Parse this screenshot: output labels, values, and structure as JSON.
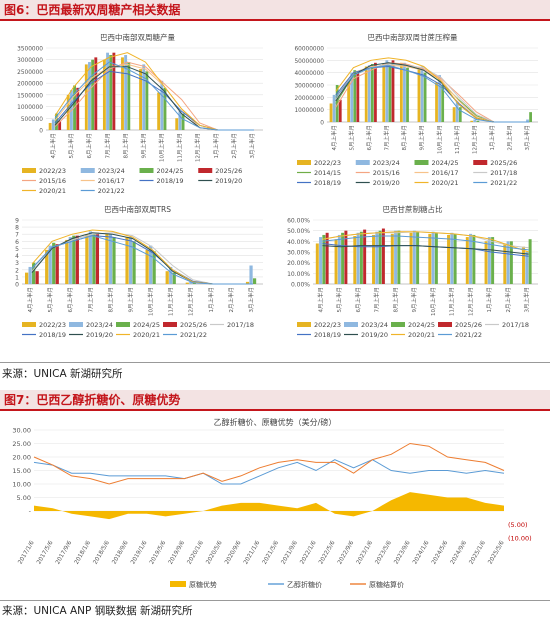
{
  "figure6": {
    "title": "图6：巴西最新双周糖产相关数据",
    "source": "来源：UNICA 新湖研究所"
  },
  "figure7": {
    "title": "图7：巴西乙醇折糖价、原糖优势",
    "source": "来源：UNICA ANP 钢联数据 新湖研究所"
  },
  "chart_data": [
    {
      "type": "bar",
      "title": "巴西中南部双周糖产量",
      "categories": [
        "4月上半月",
        "5月上半月",
        "6月上半月",
        "7月上半月",
        "8月上半月",
        "9月上半月",
        "10月上半月",
        "11月上半月",
        "12月上半月",
        "1月上半月",
        "2月上半月",
        "3月上半月"
      ],
      "ylim": [
        0,
        3500000
      ],
      "yticks": [
        "0",
        "500000",
        "1000000",
        "1500000",
        "2000000",
        "2500000",
        "3000000",
        "3500000"
      ],
      "bar_series": [
        {
          "name": "2022/23",
          "values": [
            300000,
            1500000,
            2800000,
            3000000,
            3100000,
            2600000,
            1600000,
            500000,
            0,
            0,
            0,
            0
          ]
        },
        {
          "name": "2023/24",
          "values": [
            450000,
            1700000,
            2900000,
            3300000,
            3200000,
            2800000,
            2100000,
            800000,
            0,
            0,
            0,
            0
          ]
        },
        {
          "name": "2024/25",
          "values": [
            700000,
            1900000,
            3000000,
            3200000,
            2900000,
            2500000,
            1800000,
            700000,
            0,
            0,
            0,
            0
          ]
        },
        {
          "name": "2025/26",
          "values": [
            400000,
            1800000,
            3100000,
            3300000,
            0,
            0,
            0,
            0,
            0,
            0,
            0,
            0
          ]
        }
      ],
      "line_series": [
        {
          "name": "2015/16",
          "values": [
            150000,
            900000,
            1800000,
            2600000,
            2900000,
            2700000,
            2000000,
            1300000,
            300000,
            0,
            0,
            0
          ]
        },
        {
          "name": "2016/17",
          "values": [
            400000,
            1400000,
            2200000,
            2700000,
            2800000,
            2600000,
            1900000,
            900000,
            100000,
            0,
            0,
            0
          ]
        },
        {
          "name": "2018/19",
          "values": [
            300000,
            1200000,
            2000000,
            2500000,
            2400000,
            2100000,
            1600000,
            800000,
            200000,
            0,
            0,
            0
          ]
        },
        {
          "name": "2019/20",
          "values": [
            200000,
            1100000,
            2100000,
            2700000,
            2700000,
            2400000,
            1700000,
            700000,
            100000,
            0,
            0,
            0
          ]
        },
        {
          "name": "2020/21",
          "values": [
            600000,
            1800000,
            2700000,
            3100000,
            3300000,
            2900000,
            1900000,
            900000,
            200000,
            0,
            0,
            0
          ]
        },
        {
          "name": "2021/22",
          "values": [
            500000,
            1500000,
            2300000,
            2900000,
            2600000,
            2200000,
            1400000,
            500000,
            100000,
            0,
            0,
            0
          ]
        }
      ],
      "legend": [
        "2022/23",
        "2023/24",
        "2024/25",
        "2025/26",
        "2015/16",
        "2016/17",
        "2018/19",
        "2019/20",
        "2020/21",
        "2021/22"
      ]
    },
    {
      "type": "bar",
      "title": "巴西中南部双周甘蔗压榨量",
      "categories": [
        "4月上半月",
        "5月上半月",
        "6月上半月",
        "7月上半月",
        "8月上半月",
        "9月上半月",
        "10月上半月",
        "11月上半月",
        "12月上半月",
        "1月上半月",
        "2月上半月",
        "3月上半月"
      ],
      "ylim": [
        0,
        60000000
      ],
      "yticks": [
        "0",
        "10000000",
        "20000000",
        "30000000",
        "40000000",
        "50000000",
        "60000000"
      ],
      "bar_series": [
        {
          "name": "2022/23",
          "values": [
            15000000,
            33000000,
            45000000,
            47000000,
            48000000,
            44000000,
            32000000,
            12000000,
            1000000,
            0,
            0,
            0
          ]
        },
        {
          "name": "2023/24",
          "values": [
            22000000,
            40000000,
            46000000,
            50000000,
            48000000,
            45000000,
            38000000,
            16000000,
            2000000,
            0,
            0,
            2000000
          ]
        },
        {
          "name": "2024/25",
          "values": [
            30000000,
            42000000,
            47000000,
            46000000,
            44000000,
            40000000,
            30000000,
            12000000,
            1000000,
            0,
            0,
            8000000
          ]
        },
        {
          "name": "2025/26",
          "values": [
            18000000,
            40000000,
            48000000,
            50000000,
            0,
            0,
            0,
            0,
            0,
            0,
            0,
            0
          ]
        }
      ],
      "line_series": [
        {
          "name": "2014/15",
          "values": [
            15000000,
            38000000,
            44000000,
            47000000,
            46000000,
            42000000,
            32000000,
            18000000,
            5000000,
            0,
            0,
            0
          ]
        },
        {
          "name": "2015/16",
          "values": [
            12000000,
            35000000,
            42000000,
            48000000,
            47000000,
            43000000,
            35000000,
            22000000,
            8000000,
            0,
            0,
            0
          ]
        },
        {
          "name": "2016/17",
          "values": [
            20000000,
            40000000,
            45000000,
            46000000,
            45000000,
            42000000,
            34000000,
            17000000,
            4000000,
            0,
            0,
            0
          ]
        },
        {
          "name": "2017/18",
          "values": [
            18000000,
            38000000,
            44000000,
            47000000,
            46000000,
            44000000,
            36000000,
            20000000,
            6000000,
            0,
            0,
            0
          ]
        },
        {
          "name": "2018/19",
          "values": [
            22000000,
            40000000,
            44000000,
            45000000,
            42000000,
            38000000,
            30000000,
            15000000,
            3000000,
            0,
            0,
            0
          ]
        },
        {
          "name": "2019/20",
          "values": [
            17000000,
            38000000,
            46000000,
            48000000,
            46000000,
            42000000,
            32000000,
            14000000,
            3000000,
            0,
            0,
            0
          ]
        },
        {
          "name": "2020/21",
          "values": [
            25000000,
            44000000,
            50000000,
            52000000,
            50000000,
            45000000,
            33000000,
            14000000,
            3000000,
            0,
            0,
            0
          ]
        },
        {
          "name": "2021/22",
          "values": [
            20000000,
            38000000,
            44000000,
            46000000,
            42000000,
            37000000,
            28000000,
            10000000,
            2000000,
            0,
            0,
            0
          ]
        }
      ],
      "legend": [
        "2022/23",
        "2023/24",
        "2024/25",
        "2025/26",
        "2014/15",
        "2015/16",
        "2016/17",
        "2017/18",
        "2018/19",
        "2019/20",
        "2020/21",
        "2021/22"
      ]
    },
    {
      "type": "bar",
      "title": "巴西中南部双周TRS",
      "categories": [
        "4月上半月",
        "5月上半月",
        "6月上半月",
        "7月上半月",
        "8月上半月",
        "9月上半月",
        "10月上半月",
        "11月上半月",
        "12月上半月",
        "1月上半月",
        "2月上半月",
        "3月上半月"
      ],
      "ylim": [
        0,
        9
      ],
      "yticks": [
        "0",
        "1",
        "2",
        "3",
        "4",
        "5",
        "6",
        "7",
        "8",
        "9"
      ],
      "bar_series": [
        {
          "name": "2022/23",
          "values": [
            1.6,
            4.8,
            6.2,
            7.0,
            7.2,
            6.6,
            4.8,
            1.8,
            0.2,
            0,
            0,
            0.3
          ]
        },
        {
          "name": "2023/24",
          "values": [
            2.4,
            5.4,
            6.6,
            7.4,
            7.0,
            6.6,
            5.4,
            2.4,
            0.3,
            0,
            0,
            2.6
          ]
        },
        {
          "name": "2024/25",
          "values": [
            3.0,
            5.8,
            6.8,
            7.0,
            6.6,
            6.0,
            4.6,
            1.6,
            0.2,
            0,
            0,
            0.8
          ]
        },
        {
          "name": "2025/26",
          "values": [
            1.8,
            5.6,
            6.8,
            7.2,
            0,
            0,
            0,
            0,
            0,
            0,
            0,
            0
          ]
        }
      ],
      "line_series": [
        {
          "name": "2017/18",
          "values": [
            1.8,
            5.0,
            6.2,
            7.0,
            7.2,
            6.8,
            5.2,
            2.6,
            0.6,
            0,
            0,
            0
          ]
        },
        {
          "name": "2018/19",
          "values": [
            2.2,
            5.2,
            6.0,
            6.8,
            6.6,
            6.0,
            4.4,
            2.0,
            0.4,
            0,
            0,
            0
          ]
        },
        {
          "name": "2019/20",
          "values": [
            1.6,
            5.0,
            6.4,
            7.2,
            7.0,
            6.4,
            4.6,
            1.8,
            0.3,
            0,
            0,
            0
          ]
        },
        {
          "name": "2020/21",
          "values": [
            2.8,
            6.0,
            7.0,
            7.6,
            7.4,
            6.6,
            4.8,
            2.0,
            0.3,
            0,
            0,
            0
          ]
        },
        {
          "name": "2021/22",
          "values": [
            2.2,
            5.2,
            6.0,
            6.8,
            6.0,
            5.2,
            3.8,
            1.4,
            0.2,
            0,
            0,
            0
          ]
        }
      ],
      "legend": [
        "2022/23",
        "2023/24",
        "2024/25",
        "2025/26",
        "2017/18",
        "2018/19",
        "2019/20",
        "2020/21",
        "2021/22"
      ]
    },
    {
      "type": "bar",
      "title": "巴西甘蔗制糖占比",
      "categories": [
        "4月上半月",
        "5月上半月",
        "6月上半月",
        "7月上半月",
        "8月上半月",
        "9月上半月",
        "10月上半月",
        "11月上半月",
        "12月上半月",
        "1月上半月",
        "2月上半月",
        "3月上半月"
      ],
      "ylim": [
        0,
        60
      ],
      "yticks": [
        "0.00%",
        "10.00%",
        "20.00%",
        "30.00%",
        "40.00%",
        "50.00%",
        "60.00%"
      ],
      "bar_series": [
        {
          "name": "2022/23",
          "values": [
            38,
            42,
            45,
            46,
            47,
            48,
            47,
            46,
            44,
            40,
            38,
            35
          ]
        },
        {
          "name": "2023/24",
          "values": [
            44,
            46,
            48,
            49,
            50,
            50,
            49,
            48,
            47,
            44,
            40,
            30
          ]
        },
        {
          "name": "2024/25",
          "values": [
            46,
            48,
            49,
            50,
            50,
            49,
            48,
            47,
            46,
            44,
            40,
            42
          ]
        },
        {
          "name": "2025/26",
          "values": [
            48,
            50,
            51,
            52,
            0,
            0,
            0,
            0,
            0,
            0,
            0,
            0
          ]
        }
      ],
      "line_series": [
        {
          "name": "2017/18",
          "values": [
            42,
            45,
            47,
            48,
            48,
            49,
            48,
            47,
            45,
            40,
            36,
            34
          ]
        },
        {
          "name": "2018/19",
          "values": [
            38,
            36,
            35,
            35,
            36,
            36,
            35,
            34,
            33,
            30,
            28,
            26
          ]
        },
        {
          "name": "2019/20",
          "values": [
            36,
            35,
            36,
            36,
            36,
            36,
            35,
            34,
            33,
            32,
            30,
            28
          ]
        },
        {
          "name": "2020/21",
          "values": [
            42,
            45,
            47,
            48,
            49,
            49,
            48,
            47,
            45,
            42,
            36,
            30
          ]
        },
        {
          "name": "2021/22",
          "values": [
            40,
            42,
            44,
            45,
            45,
            44,
            43,
            42,
            40,
            37,
            34,
            32
          ]
        }
      ],
      "legend": [
        "2022/23",
        "2023/24",
        "2024/25",
        "2025/26",
        "2017/18",
        "2018/19",
        "2019/20",
        "2020/21",
        "2021/22"
      ]
    },
    {
      "type": "area",
      "title": "乙醇折糖价、原糖优势（美分/磅）",
      "categories": [
        "2017/1/6",
        "2017/5/6",
        "2017/9/6",
        "2018/1/6",
        "2018/5/6",
        "2018/9/6",
        "2019/1/6",
        "2019/5/6",
        "2019/9/6",
        "2020/1/6",
        "2020/5/6",
        "2020/9/6",
        "2021/1/6",
        "2021/5/6",
        "2021/9/6",
        "2022/1/6",
        "2022/5/6",
        "2022/9/6",
        "2023/1/6",
        "2023/5/6",
        "2023/9/6",
        "2024/1/6",
        "2024/5/6",
        "2024/9/6",
        "2025/1/6",
        "2025/5/6"
      ],
      "ylim": [
        -10,
        30
      ],
      "yticks": [
        "(10.00)",
        "(5.00)",
        "-",
        "5.00",
        "10.00",
        "15.00",
        "20.00",
        "25.00",
        "30.00"
      ],
      "series": [
        {
          "name": "原糖优势",
          "values": [
            2,
            1,
            -1,
            -2,
            -3,
            -1,
            -1,
            -2,
            -1,
            0,
            2,
            3,
            3,
            2,
            1,
            3,
            -1,
            -2,
            0,
            4,
            7,
            6,
            5,
            5,
            3,
            2
          ]
        },
        {
          "name": "乙醇折糖价",
          "values": [
            18,
            17,
            14,
            14,
            13,
            13,
            13,
            13,
            12,
            14,
            10,
            10,
            13,
            16,
            18,
            15,
            19,
            16,
            19,
            15,
            14,
            15,
            15,
            14,
            15,
            14
          ]
        },
        {
          "name": "原糖结算价",
          "values": [
            20,
            17,
            13,
            12,
            10,
            12,
            12,
            12,
            12,
            14,
            11,
            13,
            16,
            18,
            19,
            18,
            18,
            14,
            19,
            21,
            25,
            24,
            20,
            19,
            18,
            15
          ]
        }
      ],
      "legend": [
        "原糖优势",
        "乙醇折糖价",
        "原糖结算价"
      ]
    }
  ]
}
